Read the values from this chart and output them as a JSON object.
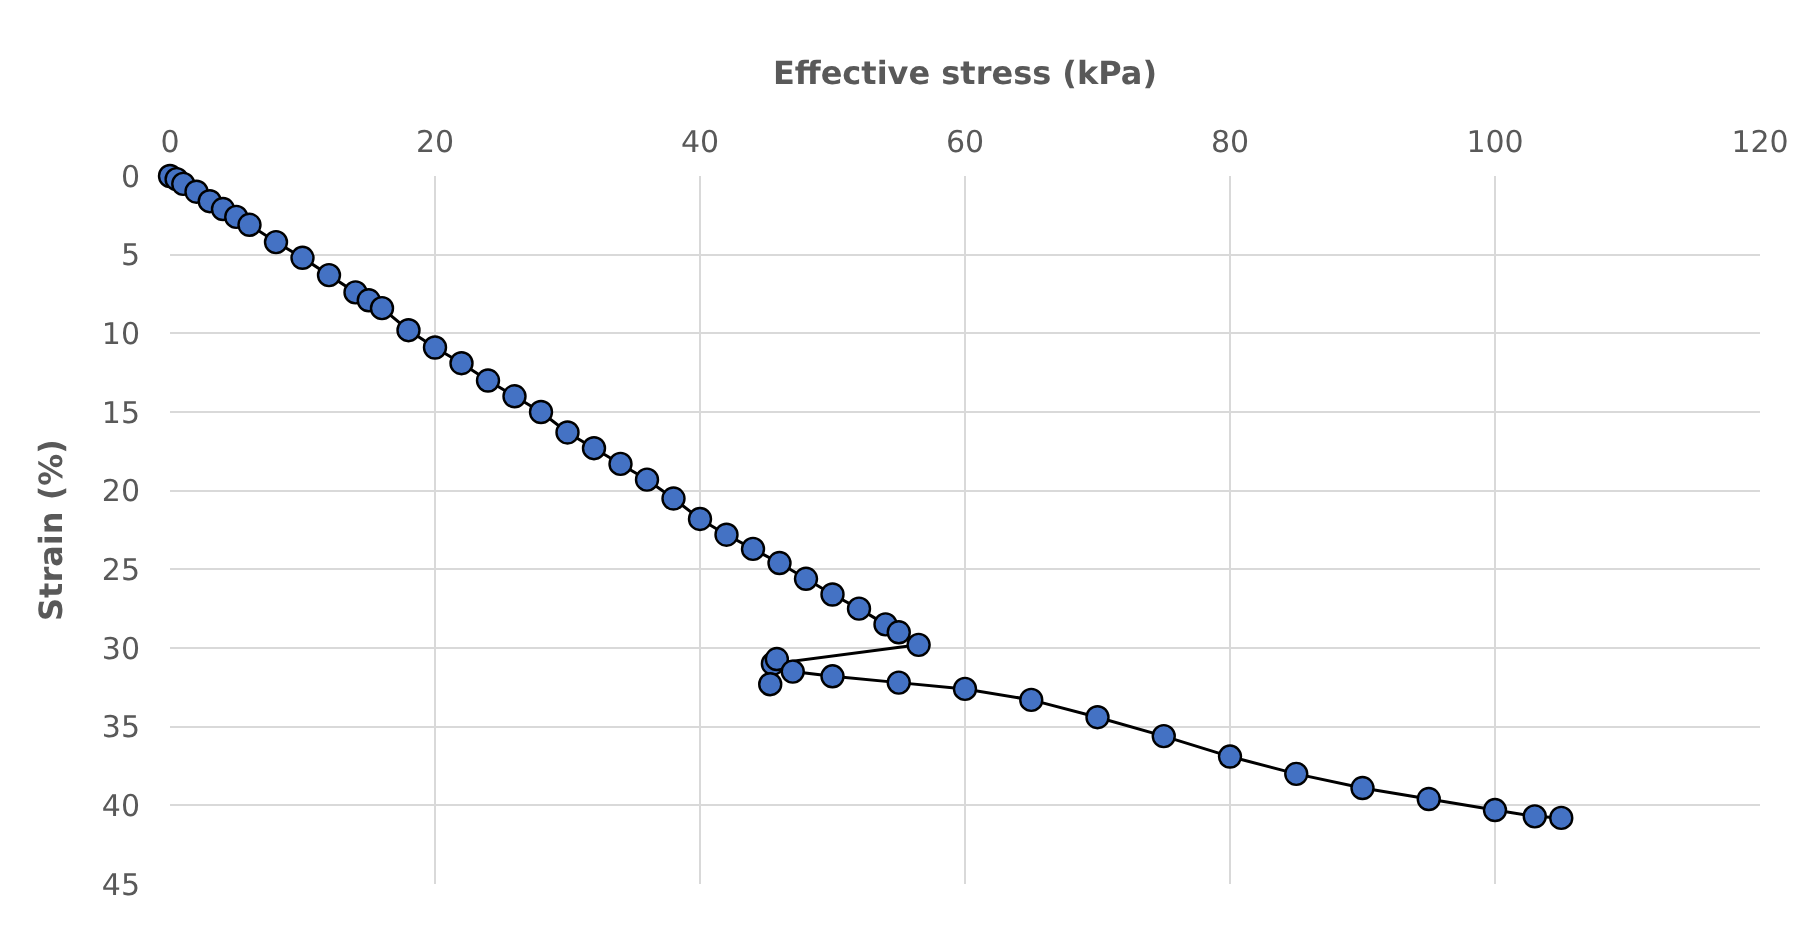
{
  "chart_data": {
    "type": "line",
    "xlabel": "Effective stress (kPa)",
    "ylabel": "Strain (%)",
    "xlim": [
      0,
      120
    ],
    "xticks": [
      0,
      20,
      40,
      60,
      80,
      100,
      120
    ],
    "ylim": [
      45,
      0
    ],
    "yticks": [
      0,
      5,
      10,
      15,
      20,
      25,
      30,
      35,
      40,
      45
    ],
    "grid": true,
    "marker": "circle",
    "line_style": "solid",
    "series": [
      {
        "color": "#000000",
        "colors": [
          "#4472c4",
          "#4472c4",
          "#4472c4",
          "#4472c4",
          "#4472c4",
          "#4472c4",
          "#4472c4",
          "#4472c4",
          "#4472c4",
          "#4472c4",
          "#4472c4",
          "#4472c4",
          "#4472c4",
          "#4472c4",
          "#4472c4",
          "#4472c4",
          "#4472c4",
          "#4472c4",
          "#4472c4",
          "#4472c4",
          "#4472c4",
          "#4472c4",
          "#4472c4",
          "#4472c4",
          "#4472c4",
          "#4472c4",
          "#4472c4",
          "#4472c4",
          "#4472c4",
          "#4472c4",
          "#4472c4",
          "#4472c4",
          "#4472c4",
          "#4472c4",
          "#4472c4",
          "#4472c4",
          "#4472c4",
          "#4472c4",
          "#4472c4",
          "#4472c4",
          "#4472c4",
          "#4472c4",
          "#4472c4",
          "#4472c4",
          "#4472c4",
          "#4472c4",
          "#4472c4",
          "#4472c4",
          "#4472c4",
          "#4472c4",
          "#4472c4",
          "#4472c4"
        ],
        "x": [
          0,
          0.5,
          1,
          2,
          3,
          4,
          5,
          6,
          8,
          10,
          12,
          14,
          15,
          16,
          18,
          20,
          22,
          24,
          26,
          28,
          30,
          32,
          34,
          36,
          38,
          40,
          42,
          44,
          46,
          48,
          50,
          52,
          54,
          55,
          56.5,
          45.5,
          45.3,
          45.8,
          47,
          50,
          55,
          60,
          65,
          70,
          75,
          80,
          85,
          90,
          95,
          100,
          103,
          105
        ],
        "values": [
          0,
          0.2,
          0.5,
          1,
          1.6,
          2.1,
          2.6,
          3.1,
          4.2,
          5.2,
          6.3,
          7.4,
          7.9,
          8.4,
          9.8,
          10.9,
          11.9,
          13,
          14,
          15,
          16.3,
          17.3,
          18.3,
          19.3,
          20.5,
          21.8,
          22.8,
          23.7,
          24.6,
          25.6,
          26.6,
          27.5,
          28.5,
          29,
          29.8,
          31,
          32.3,
          30.7,
          31.5,
          31.8,
          32.2,
          32.6,
          33.3,
          34.4,
          35.6,
          36.9,
          38,
          38.9,
          39.6,
          40.3,
          40.7,
          40.8
        ]
      }
    ]
  }
}
